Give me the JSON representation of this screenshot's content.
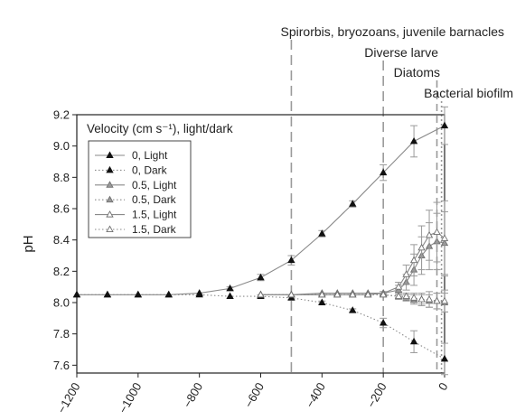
{
  "chart_data": {
    "type": "line",
    "title": "",
    "xlabel": "",
    "ylabel": "pH",
    "xlim": [
      -1200,
      0
    ],
    "ylim": [
      7.55,
      9.2
    ],
    "xticks": [
      -1200,
      -1000,
      -800,
      -600,
      -400,
      -200,
      0
    ],
    "xtick_labels": [
      "−1200",
      "−1000",
      "−800",
      "−600",
      "−400",
      "−200",
      "0"
    ],
    "yticks": [
      7.6,
      7.8,
      8.0,
      8.2,
      8.4,
      8.6,
      8.8,
      9.0,
      9.2
    ],
    "ytick_labels": [
      "7.6",
      "7.8",
      "8.0",
      "8.2",
      "8.4",
      "8.6",
      "8.8",
      "9.0",
      "9.2"
    ],
    "grid": false,
    "legend": {
      "title": "Velocity (cm s⁻¹), light/dark",
      "placement": "top-left",
      "entries": [
        "0, Light",
        "0, Dark",
        "0.5, Light",
        "0.5, Dark",
        "1.5, Light",
        "1.5, Dark"
      ]
    },
    "series": [
      {
        "name": "0, Light",
        "marker": "filled-triangle",
        "line": "solid",
        "x": [
          -1200,
          -1100,
          -1000,
          -900,
          -800,
          -700,
          -600,
          -500,
          -400,
          -300,
          -200,
          -100,
          0
        ],
        "y": [
          8.05,
          8.05,
          8.05,
          8.05,
          8.06,
          8.09,
          8.16,
          8.27,
          8.44,
          8.63,
          8.83,
          9.03,
          9.13
        ],
        "err": [
          0,
          0,
          0,
          0,
          0,
          0.01,
          0.02,
          0.03,
          0.02,
          0.02,
          0.05,
          0.1,
          0.12
        ]
      },
      {
        "name": "0, Dark",
        "marker": "filled-triangle",
        "line": "dotted",
        "x": [
          -1200,
          -1100,
          -1000,
          -900,
          -800,
          -700,
          -600,
          -500,
          -400,
          -300,
          -200,
          -100,
          0
        ],
        "y": [
          8.05,
          8.05,
          8.05,
          8.05,
          8.05,
          8.04,
          8.04,
          8.03,
          8.0,
          7.95,
          7.87,
          7.75,
          7.64
        ],
        "err": [
          0,
          0,
          0,
          0,
          0,
          0,
          0.01,
          0.01,
          0.01,
          0.01,
          0.03,
          0.07,
          0.1
        ]
      },
      {
        "name": "0.5, Light",
        "marker": "gray-triangle",
        "line": "solid",
        "x": [
          -600,
          -500,
          -400,
          -350,
          -300,
          -250,
          -200,
          -150,
          -125,
          -100,
          -75,
          -50,
          -25,
          0
        ],
        "y": [
          8.05,
          8.05,
          8.05,
          8.05,
          8.05,
          8.05,
          8.06,
          8.08,
          8.13,
          8.21,
          8.3,
          8.36,
          8.39,
          8.38
        ],
        "err": [
          0,
          0,
          0,
          0,
          0,
          0,
          0.01,
          0.03,
          0.05,
          0.1,
          0.12,
          0.15,
          0.18,
          0.2
        ]
      },
      {
        "name": "0.5, Dark",
        "marker": "gray-triangle",
        "line": "dotted",
        "x": [
          -600,
          -500,
          -400,
          -350,
          -300,
          -250,
          -200,
          -150,
          -125,
          -100,
          -75,
          -50,
          -25,
          0
        ],
        "y": [
          8.05,
          8.05,
          8.05,
          8.05,
          8.05,
          8.05,
          8.05,
          8.04,
          8.03,
          8.02,
          8.02,
          8.01,
          8.01,
          8.0
        ],
        "err": [
          0,
          0,
          0,
          0,
          0,
          0,
          0.01,
          0.02,
          0.02,
          0.03,
          0.03,
          0.04,
          0.05,
          0.06
        ]
      },
      {
        "name": "1.5, Light",
        "marker": "open-triangle",
        "line": "solid",
        "x": [
          -600,
          -500,
          -400,
          -350,
          -300,
          -250,
          -200,
          -150,
          -125,
          -100,
          -75,
          -50,
          -25,
          0
        ],
        "y": [
          8.05,
          8.05,
          8.06,
          8.06,
          8.06,
          8.06,
          8.06,
          8.1,
          8.18,
          8.27,
          8.35,
          8.43,
          8.45,
          8.41
        ],
        "err": [
          0,
          0,
          0,
          0,
          0,
          0,
          0.01,
          0.03,
          0.06,
          0.1,
          0.14,
          0.16,
          0.19,
          0.24
        ]
      },
      {
        "name": "1.5, Dark",
        "marker": "open-triangle",
        "line": "dotted",
        "x": [
          -600,
          -500,
          -400,
          -350,
          -300,
          -250,
          -200,
          -150,
          -125,
          -100,
          -75,
          -50,
          -25,
          0
        ],
        "y": [
          8.05,
          8.05,
          8.05,
          8.05,
          8.05,
          8.05,
          8.05,
          8.04,
          8.04,
          8.03,
          8.02,
          8.02,
          8.01,
          8.01
        ],
        "err": [
          0,
          0,
          0,
          0,
          0,
          0,
          0.01,
          0.01,
          0.02,
          0.03,
          0.04,
          0.05,
          0.05,
          0.07
        ]
      }
    ],
    "vertical_markers": [
      {
        "label": "Spirorbis, bryozoans, juvenile barnacles",
        "x": -500,
        "style": "long-dash"
      },
      {
        "label": "Diverse larve",
        "x": -200,
        "style": "long-dash"
      },
      {
        "label": "Diatoms",
        "x": -25,
        "style": "medium-dash"
      },
      {
        "label": "Bacterial biofilm",
        "x": -10,
        "style": "dotted"
      }
    ],
    "colors": {
      "line": "#8a8a8a",
      "filled": "#111111",
      "gray": "#9a9a9a",
      "open": "#ffffff",
      "axis": "#222222",
      "marker_line": "#9a9a9a"
    }
  }
}
